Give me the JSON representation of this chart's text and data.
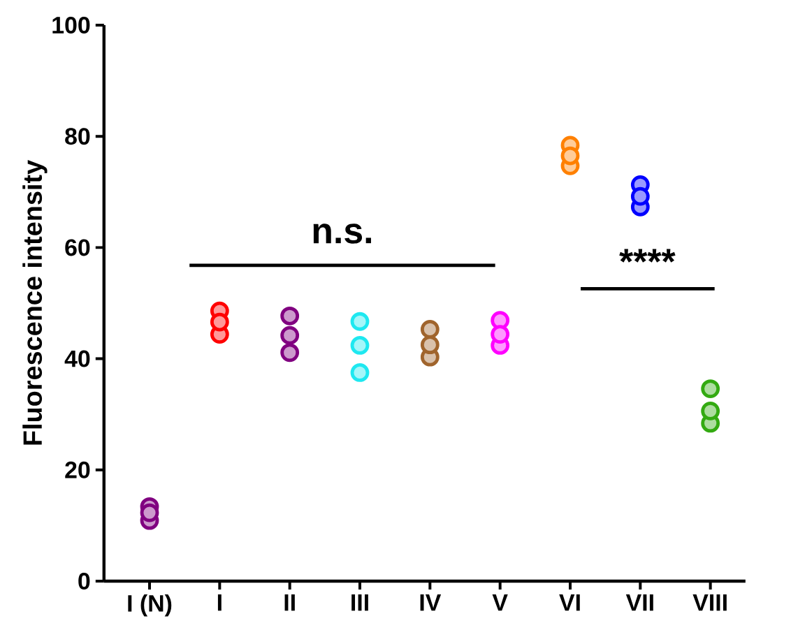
{
  "chart_data": {
    "type": "scatter",
    "ylabel": "Fluorescence intensity",
    "categories": [
      "I (N)",
      "I",
      "II",
      "III",
      "IV",
      "V",
      "VI",
      "VII",
      "VIII"
    ],
    "ylim": [
      0,
      100
    ],
    "yticks": [
      0,
      20,
      40,
      60,
      80,
      100
    ],
    "marker": "circle",
    "annotations": [
      "n.s.",
      "****"
    ],
    "series": [
      {
        "color": "#800080",
        "x": [
          "I (N)",
          "I (N)",
          "I (N)"
        ],
        "values": [
          10.9,
          13.4,
          12.3
        ]
      },
      {
        "color": "#ff0000",
        "x": [
          "I",
          "I",
          "I"
        ],
        "values": [
          48.6,
          44.4,
          46.6
        ]
      },
      {
        "color": "#800080",
        "x": [
          "II",
          "II",
          "II"
        ],
        "values": [
          47.7,
          41.1,
          44.2
        ]
      },
      {
        "color": "#1ee8f0",
        "x": [
          "III",
          "III",
          "III"
        ],
        "values": [
          46.7,
          42.4,
          37.5
        ]
      },
      {
        "color": "#a0642c",
        "x": [
          "IV",
          "IV",
          "IV"
        ],
        "values": [
          45.3,
          40.3,
          42.5
        ]
      },
      {
        "color": "#ff00ff",
        "x": [
          "V",
          "V",
          "V"
        ],
        "values": [
          46.9,
          42.4,
          44.4
        ]
      },
      {
        "color": "#ff8000",
        "x": [
          "VI",
          "VI",
          "VI"
        ],
        "values": [
          78.4,
          74.7,
          76.5
        ]
      },
      {
        "color": "#0000ff",
        "x": [
          "VII",
          "VII",
          "VII"
        ],
        "values": [
          71.3,
          67.3,
          69.2
        ]
      },
      {
        "color": "#33aa11",
        "x": [
          "VIII",
          "VIII",
          "VIII"
        ],
        "values": [
          34.6,
          28.4,
          30.6
        ]
      }
    ]
  }
}
